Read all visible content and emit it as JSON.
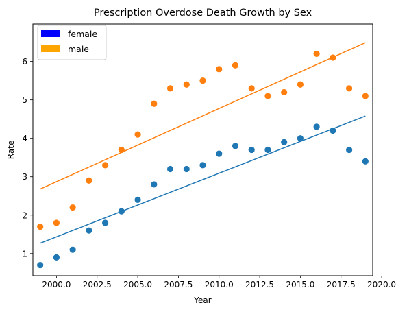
{
  "chart_data": {
    "type": "scatter",
    "title": "Prescription Overdose Death Growth by Sex",
    "xlabel": "Year",
    "ylabel": "Rate",
    "xlim": [
      1998.55,
      2019.45
    ],
    "ylim": [
      0.425,
      6.975
    ],
    "xticks": [
      2000.0,
      2002.5,
      2005.0,
      2007.5,
      2010.0,
      2012.5,
      2015.0,
      2017.5,
      2020.0
    ],
    "xtick_labels": [
      "2000.0",
      "2002.5",
      "2005.0",
      "2007.5",
      "2010.0",
      "2012.5",
      "2015.0",
      "2017.5",
      "2020.0"
    ],
    "yticks": [
      1,
      2,
      3,
      4,
      5,
      6
    ],
    "ytick_labels": [
      "1",
      "2",
      "3",
      "4",
      "5",
      "6"
    ],
    "grid": false,
    "legend": {
      "placement": "top-left",
      "entries": [
        {
          "label": "female",
          "color": "#0000ff"
        },
        {
          "label": "male",
          "color": "#ffa500"
        }
      ]
    },
    "x": [
      1999,
      2000,
      2001,
      2002,
      2003,
      2004,
      2005,
      2006,
      2007,
      2008,
      2009,
      2010,
      2011,
      2012,
      2013,
      2014,
      2015,
      2016,
      2017,
      2018,
      2019
    ],
    "series": [
      {
        "key": "female",
        "color": "#1f77b4",
        "values": [
          0.7,
          0.9,
          1.1,
          1.6,
          1.8,
          2.1,
          2.4,
          2.8,
          3.2,
          3.2,
          3.3,
          3.6,
          3.8,
          3.7,
          3.7,
          3.9,
          4.0,
          4.3,
          4.2,
          3.7,
          3.4
        ],
        "trendline": {
          "x": [
            1999,
            2019
          ],
          "y": [
            1.27,
            4.58
          ]
        }
      },
      {
        "key": "male",
        "color": "#ff7f0e",
        "values": [
          1.7,
          1.8,
          2.2,
          2.9,
          3.3,
          3.7,
          4.1,
          4.9,
          5.3,
          5.4,
          5.5,
          5.8,
          5.9,
          5.3,
          5.1,
          5.2,
          5.4,
          6.2,
          6.1,
          5.3,
          5.1
        ],
        "trendline": {
          "x": [
            1999,
            2019
          ],
          "y": [
            2.68,
            6.49
          ]
        }
      }
    ]
  }
}
